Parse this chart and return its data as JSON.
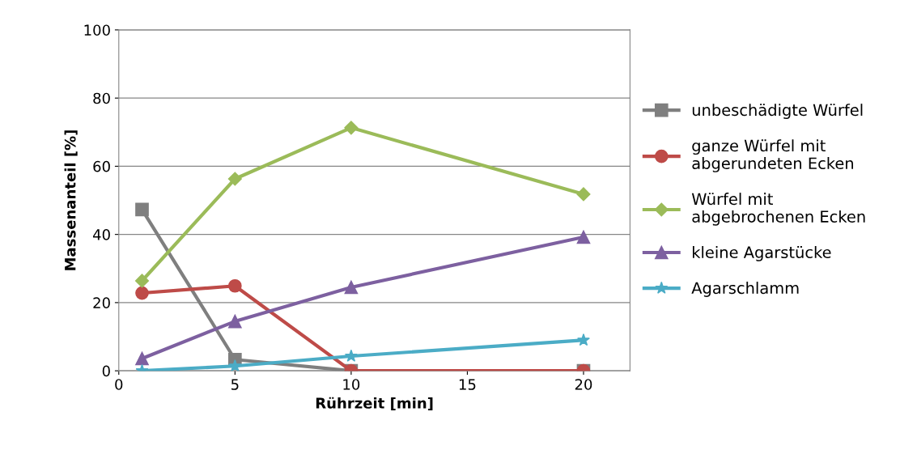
{
  "chart_data": {
    "type": "line",
    "xlabel": "Rührzeit [min]",
    "ylabel": "Massenanteil [%]",
    "x": [
      1,
      5,
      10,
      20
    ],
    "xlim": [
      0,
      22
    ],
    "xticks": [
      0,
      5,
      10,
      15,
      20
    ],
    "ylim": [
      0,
      100
    ],
    "yticks": [
      0,
      20,
      40,
      60,
      80,
      100
    ],
    "grid": "y",
    "legend": "right",
    "line_style": "solid",
    "series": [
      {
        "name": "unbeschädigte Würfel",
        "color": "#7f7f7f",
        "marker": "square",
        "values": [
          47.3,
          3.3,
          0,
          0
        ]
      },
      {
        "name": "ganze Würfel mit\nabgerundeten Ecken",
        "color": "#be4b48",
        "marker": "circle",
        "values": [
          22.8,
          24.9,
          0,
          0
        ]
      },
      {
        "name": "Würfel mit\nabgebrochenen Ecken",
        "color": "#9bbb59",
        "marker": "diamond",
        "values": [
          26.4,
          56.3,
          71.3,
          51.8
        ]
      },
      {
        "name": "kleine Agarstücke",
        "color": "#7d60a0",
        "marker": "triangle",
        "values": [
          3.6,
          14.5,
          24.5,
          39.2
        ]
      },
      {
        "name": "Agarschlamm",
        "color": "#4bacc6",
        "marker": "star",
        "values": [
          0,
          1.4,
          4.3,
          9.0
        ]
      }
    ]
  }
}
